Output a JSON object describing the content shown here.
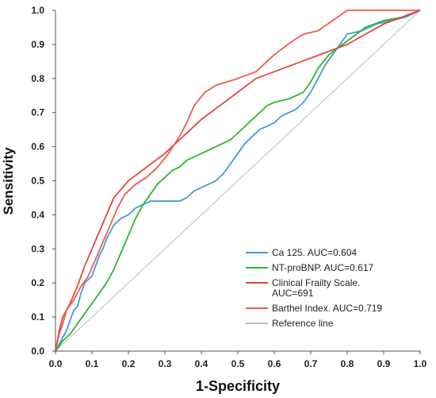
{
  "chart_data": {
    "type": "line",
    "xlabel": "1-Specificity",
    "ylabel": "Sensitivity",
    "xlim": [
      0.0,
      1.0
    ],
    "ylim": [
      0.0,
      1.0
    ],
    "x_ticks": [
      "0.0",
      "0.1",
      "0.2",
      "0.3",
      "0.4",
      "0.5",
      "0.6",
      "0.7",
      "0.8",
      "0.9",
      "1.0"
    ],
    "y_ticks": [
      "0.0",
      "0.1",
      "0.2",
      "0.3",
      "0.4",
      "0.5",
      "0.6",
      "0.7",
      "0.8",
      "0.9",
      "1.0"
    ],
    "grid": false,
    "legend_position": "bottom-right",
    "series": [
      {
        "name": "Ca 125. AUC=0.604",
        "color": "#3f9be0",
        "legend_lines": [
          "Ca 125. AUC=0.604"
        ],
        "points": [
          [
            0,
            0
          ],
          [
            0.01,
            0.02
          ],
          [
            0.02,
            0.04
          ],
          [
            0.03,
            0.06
          ],
          [
            0.04,
            0.09
          ],
          [
            0.05,
            0.12
          ],
          [
            0.06,
            0.13
          ],
          [
            0.07,
            0.17
          ],
          [
            0.08,
            0.2
          ],
          [
            0.09,
            0.21
          ],
          [
            0.1,
            0.22
          ],
          [
            0.11,
            0.25
          ],
          [
            0.12,
            0.28
          ],
          [
            0.13,
            0.3
          ],
          [
            0.14,
            0.33
          ],
          [
            0.15,
            0.35
          ],
          [
            0.16,
            0.37
          ],
          [
            0.17,
            0.38
          ],
          [
            0.18,
            0.39
          ],
          [
            0.2,
            0.4
          ],
          [
            0.22,
            0.42
          ],
          [
            0.24,
            0.43
          ],
          [
            0.26,
            0.44
          ],
          [
            0.3,
            0.44
          ],
          [
            0.34,
            0.44
          ],
          [
            0.36,
            0.45
          ],
          [
            0.38,
            0.47
          ],
          [
            0.4,
            0.48
          ],
          [
            0.42,
            0.49
          ],
          [
            0.44,
            0.5
          ],
          [
            0.46,
            0.52
          ],
          [
            0.48,
            0.55
          ],
          [
            0.5,
            0.58
          ],
          [
            0.52,
            0.61
          ],
          [
            0.54,
            0.63
          ],
          [
            0.56,
            0.65
          ],
          [
            0.58,
            0.66
          ],
          [
            0.6,
            0.67
          ],
          [
            0.62,
            0.69
          ],
          [
            0.64,
            0.7
          ],
          [
            0.66,
            0.71
          ],
          [
            0.68,
            0.73
          ],
          [
            0.7,
            0.76
          ],
          [
            0.72,
            0.8
          ],
          [
            0.74,
            0.84
          ],
          [
            0.76,
            0.87
          ],
          [
            0.78,
            0.9
          ],
          [
            0.8,
            0.93
          ],
          [
            0.84,
            0.94
          ],
          [
            0.88,
            0.96
          ],
          [
            0.92,
            0.97
          ],
          [
            0.96,
            0.98
          ],
          [
            1,
            1
          ]
        ]
      },
      {
        "name": "NT-proBNP. AUC=0.617",
        "color": "#2fb52f",
        "legend_lines": [
          "NT-proBNP. AUC=0.617"
        ],
        "points": [
          [
            0,
            0
          ],
          [
            0.02,
            0.03
          ],
          [
            0.04,
            0.05
          ],
          [
            0.06,
            0.08
          ],
          [
            0.08,
            0.11
          ],
          [
            0.1,
            0.14
          ],
          [
            0.12,
            0.17
          ],
          [
            0.14,
            0.2
          ],
          [
            0.16,
            0.24
          ],
          [
            0.18,
            0.29
          ],
          [
            0.2,
            0.34
          ],
          [
            0.22,
            0.39
          ],
          [
            0.24,
            0.43
          ],
          [
            0.26,
            0.46
          ],
          [
            0.28,
            0.49
          ],
          [
            0.3,
            0.51
          ],
          [
            0.32,
            0.53
          ],
          [
            0.34,
            0.54
          ],
          [
            0.36,
            0.56
          ],
          [
            0.38,
            0.57
          ],
          [
            0.4,
            0.58
          ],
          [
            0.42,
            0.59
          ],
          [
            0.44,
            0.6
          ],
          [
            0.46,
            0.61
          ],
          [
            0.48,
            0.62
          ],
          [
            0.5,
            0.64
          ],
          [
            0.52,
            0.66
          ],
          [
            0.54,
            0.68
          ],
          [
            0.56,
            0.7
          ],
          [
            0.58,
            0.72
          ],
          [
            0.6,
            0.73
          ],
          [
            0.64,
            0.74
          ],
          [
            0.68,
            0.76
          ],
          [
            0.7,
            0.79
          ],
          [
            0.72,
            0.83
          ],
          [
            0.75,
            0.87
          ],
          [
            0.8,
            0.91
          ],
          [
            0.85,
            0.95
          ],
          [
            0.9,
            0.97
          ],
          [
            0.95,
            0.98
          ],
          [
            1,
            1
          ]
        ]
      },
      {
        "name": "Clinical Frailty Scale. AUC=691",
        "color": "#e8453c",
        "legend_lines": [
          "Clinical Frailty Scale.",
          "AUC=691"
        ],
        "points": [
          [
            0,
            0
          ],
          [
            0.01,
            0.06
          ],
          [
            0.02,
            0.1
          ],
          [
            0.04,
            0.14
          ],
          [
            0.06,
            0.19
          ],
          [
            0.08,
            0.25
          ],
          [
            0.1,
            0.3
          ],
          [
            0.12,
            0.35
          ],
          [
            0.14,
            0.4
          ],
          [
            0.16,
            0.45
          ],
          [
            0.2,
            0.5
          ],
          [
            0.3,
            0.58
          ],
          [
            0.4,
            0.68
          ],
          [
            0.5,
            0.76
          ],
          [
            0.55,
            0.8
          ],
          [
            0.6,
            0.82
          ],
          [
            0.7,
            0.86
          ],
          [
            0.8,
            0.9
          ],
          [
            0.9,
            0.96
          ],
          [
            1,
            1
          ]
        ]
      },
      {
        "name": "Barthel Index. AUC=0.719",
        "color": "#ee5a50",
        "legend_lines": [
          "Barthel Index. AUC=0.719"
        ],
        "points": [
          [
            0,
            0
          ],
          [
            0.01,
            0.05
          ],
          [
            0.02,
            0.08
          ],
          [
            0.03,
            0.12
          ],
          [
            0.05,
            0.15
          ],
          [
            0.07,
            0.19
          ],
          [
            0.09,
            0.22
          ],
          [
            0.11,
            0.27
          ],
          [
            0.13,
            0.32
          ],
          [
            0.15,
            0.37
          ],
          [
            0.17,
            0.42
          ],
          [
            0.19,
            0.46
          ],
          [
            0.22,
            0.49
          ],
          [
            0.25,
            0.51
          ],
          [
            0.28,
            0.54
          ],
          [
            0.31,
            0.58
          ],
          [
            0.34,
            0.63
          ],
          [
            0.36,
            0.67
          ],
          [
            0.38,
            0.72
          ],
          [
            0.41,
            0.76
          ],
          [
            0.44,
            0.78
          ],
          [
            0.47,
            0.79
          ],
          [
            0.5,
            0.8
          ],
          [
            0.55,
            0.82
          ],
          [
            0.6,
            0.87
          ],
          [
            0.65,
            0.91
          ],
          [
            0.68,
            0.93
          ],
          [
            0.72,
            0.94
          ],
          [
            0.76,
            0.97
          ],
          [
            0.8,
            1
          ],
          [
            1,
            1
          ]
        ]
      },
      {
        "name": "Reference line",
        "color": "#bdbdbd",
        "legend_lines": [
          "Reference line"
        ],
        "points": [
          [
            0,
            0
          ],
          [
            1,
            1
          ]
        ]
      }
    ]
  }
}
